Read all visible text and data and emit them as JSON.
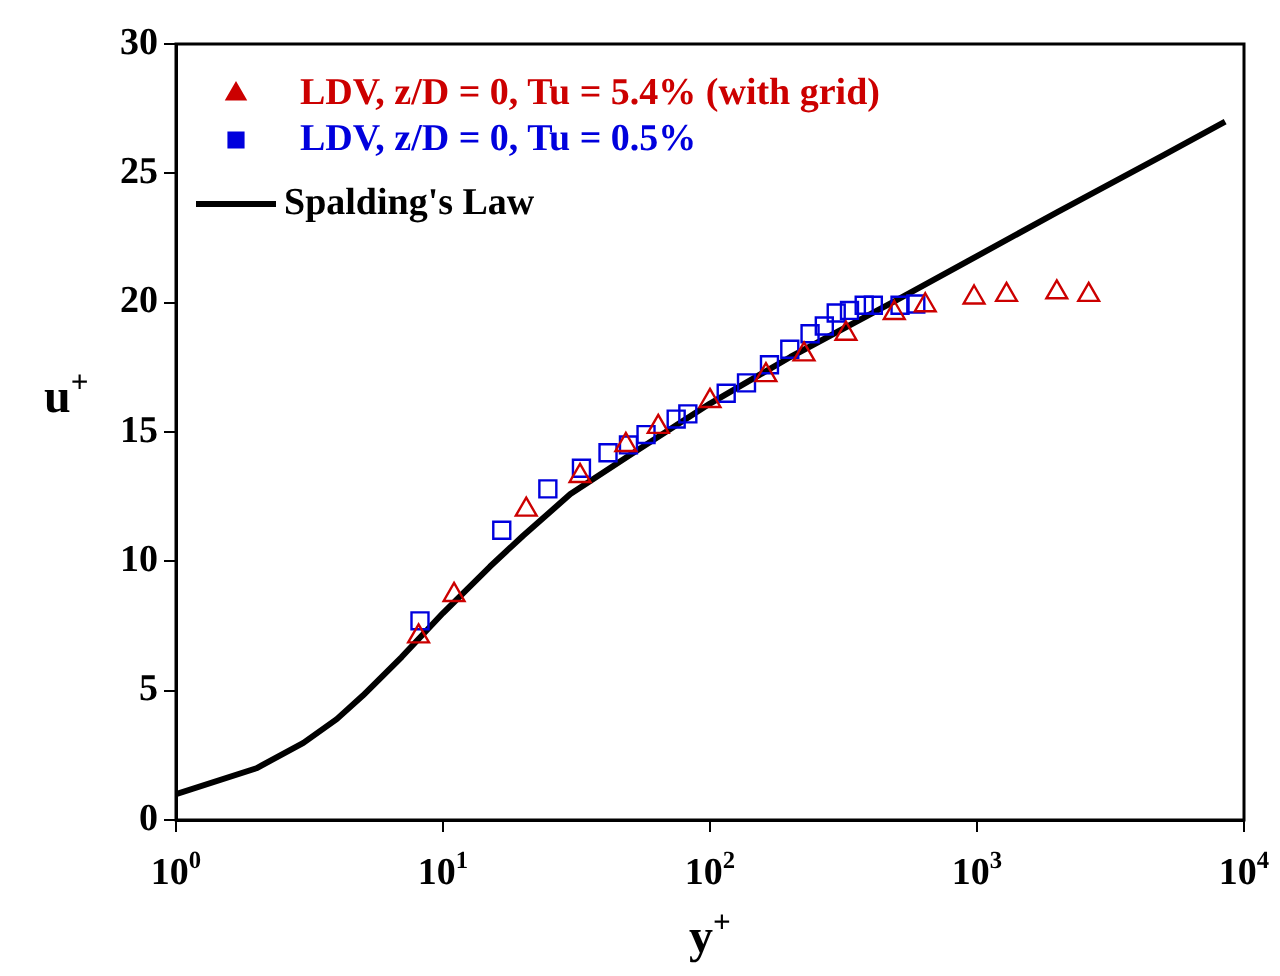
{
  "chart_data": {
    "type": "scatter",
    "xlabel": "y$^{+}$",
    "ylabel": "u$^{+}$",
    "log": "x",
    "xlim": [
      1,
      10000
    ],
    "ylim": [
      0,
      30
    ],
    "xticks": [
      {
        "value": 1,
        "label": "10$^{0}$"
      },
      {
        "value": 10,
        "label": "10$^{1}$"
      },
      {
        "value": 100,
        "label": "10$^{2}$"
      },
      {
        "value": 1000,
        "label": "10$^{3}$"
      },
      {
        "value": 10000,
        "label": "10$^{4}$"
      }
    ],
    "yticks": [
      0,
      5,
      10,
      15,
      20,
      25,
      30
    ],
    "grid": false,
    "legend": "top left",
    "series": [
      {
        "name": "LDV, z/D = 0, Tu = 5.4% (with grid)",
        "type": "scatter",
        "marker": "triangle",
        "color": "#cc0000",
        "x": [
          8.1,
          11,
          20.5,
          32.6,
          48.4,
          64,
          100,
          162,
          225,
          323,
          490,
          640,
          975,
          1290,
          1990,
          2620
        ],
        "values": [
          7.1,
          8.7,
          12.0,
          13.3,
          14.5,
          15.2,
          16.2,
          17.2,
          18.0,
          18.8,
          19.6,
          19.9,
          20.2,
          20.3,
          20.4,
          20.3
        ]
      },
      {
        "name": "LDV, z/D = 0, Tu = 0.5%",
        "type": "scatter",
        "marker": "square",
        "color": "#0000dd",
        "x": [
          8.2,
          16.6,
          24.7,
          33,
          41.5,
          49.5,
          57.6,
          74.7,
          82.6,
          115,
          137,
          167,
          199,
          237,
          268,
          297,
          333,
          378,
          409,
          515,
          590
        ],
        "values": [
          7.7,
          11.2,
          12.8,
          13.6,
          14.2,
          14.5,
          14.9,
          15.5,
          15.7,
          16.5,
          16.9,
          17.6,
          18.2,
          18.8,
          19.1,
          19.6,
          19.7,
          19.9,
          19.9,
          19.9,
          19.95
        ]
      },
      {
        "name": "Spalding's Law",
        "type": "line",
        "marker": "none",
        "line_style": "solid",
        "color": "#000000",
        "x": [
          1,
          2,
          3,
          4,
          5,
          7,
          10,
          15,
          20,
          30,
          50,
          100,
          200,
          500,
          1000,
          2000,
          5000,
          8500
        ],
        "values": [
          1.0,
          2.0,
          2.98,
          3.9,
          4.8,
          6.3,
          8.0,
          9.8,
          11.0,
          12.6,
          14.1,
          16.1,
          17.9,
          20.1,
          21.8,
          23.5,
          25.7,
          27.0
        ]
      }
    ]
  }
}
